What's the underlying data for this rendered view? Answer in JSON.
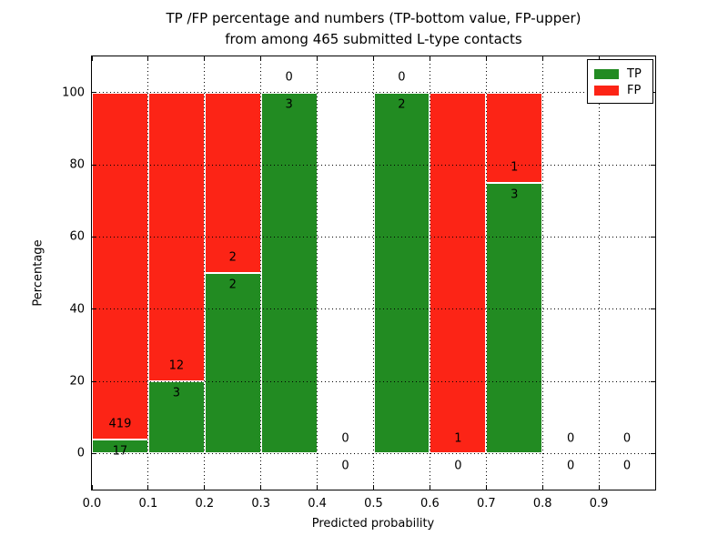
{
  "title": {
    "line1": "TP /FP percentage and numbers (TP-bottom value, FP-upper)",
    "line2": "from among 465 submitted L-type contacts"
  },
  "chart_data": {
    "type": "bar",
    "stacked": true,
    "title": "TP /FP percentage and numbers (TP-bottom value, FP-upper) from among 465 submitted L-type contacts",
    "xlabel": "Predicted probability",
    "ylabel": "Percentage",
    "xlim": [
      0.0,
      1.0
    ],
    "ylim": [
      -10,
      110
    ],
    "bin_width": 0.1,
    "bin_starts": [
      0.0,
      0.1,
      0.2,
      0.3,
      0.4,
      0.5,
      0.6,
      0.7,
      0.8,
      0.9
    ],
    "xticks": [
      0.0,
      0.1,
      0.2,
      0.3,
      0.4,
      0.5,
      0.6,
      0.7,
      0.8,
      0.9
    ],
    "xtick_labels": [
      "0.0",
      "0.1",
      "0.2",
      "0.3",
      "0.4",
      "0.5",
      "0.6",
      "0.7",
      "0.8",
      "0.9"
    ],
    "yticks": [
      0,
      20,
      40,
      60,
      80,
      100
    ],
    "ytick_labels": [
      "0",
      "20",
      "40",
      "60",
      "80",
      "100"
    ],
    "grid": true,
    "legend_position": "upper right",
    "series": [
      {
        "name": "TP",
        "color": "#228b22",
        "values": [
          17,
          3,
          2,
          3,
          0,
          2,
          0,
          3,
          0,
          0
        ]
      },
      {
        "name": "FP",
        "color": "#fc2416",
        "values": [
          419,
          12,
          2,
          0,
          0,
          0,
          1,
          1,
          0,
          0
        ]
      }
    ],
    "note": "Bars show TP percentage (green, bottom) and FP percentage (red, top) per predicted-probability bin, stacked to 100%; numeric annotations give raw counts (TP below boundary, FP above boundary)."
  }
}
